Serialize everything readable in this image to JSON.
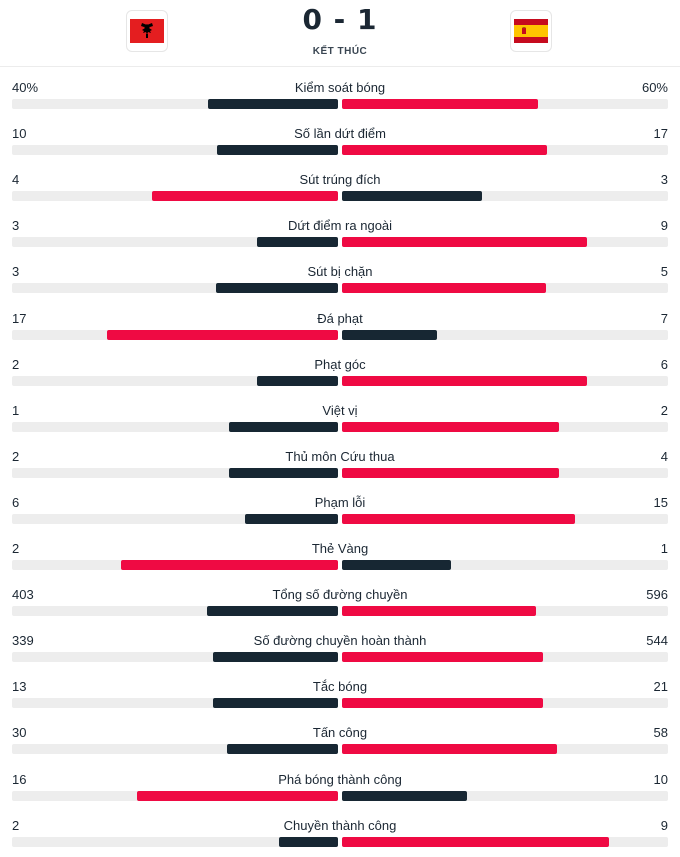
{
  "match": {
    "score": "0 - 1",
    "status": "KẾT THÚC",
    "home_team": {
      "flag_icon": "albania-flag-icon"
    },
    "away_team": {
      "flag_icon": "spain-flag-icon"
    }
  },
  "colors": {
    "home": "#172733",
    "away": "#ef0a43",
    "track": "#ededed"
  },
  "stats": [
    {
      "label": "Kiểm soát bóng",
      "home": "40%",
      "away": "60%",
      "home_val": 40,
      "away_val": 60
    },
    {
      "label": "Số lần dứt điểm",
      "home": "10",
      "away": "17",
      "home_val": 10,
      "away_val": 17
    },
    {
      "label": "Sút trúng đích",
      "home": "4",
      "away": "3",
      "home_val": 4,
      "away_val": 3
    },
    {
      "label": "Dứt điểm ra ngoài",
      "home": "3",
      "away": "9",
      "home_val": 3,
      "away_val": 9
    },
    {
      "label": "Sút bị chặn",
      "home": "3",
      "away": "5",
      "home_val": 3,
      "away_val": 5
    },
    {
      "label": "Đá phạt",
      "home": "17",
      "away": "7",
      "home_val": 17,
      "away_val": 7
    },
    {
      "label": "Phạt góc",
      "home": "2",
      "away": "6",
      "home_val": 2,
      "away_val": 6
    },
    {
      "label": "Việt vị",
      "home": "1",
      "away": "2",
      "home_val": 1,
      "away_val": 2
    },
    {
      "label": "Thủ môn Cứu thua",
      "home": "2",
      "away": "4",
      "home_val": 2,
      "away_val": 4
    },
    {
      "label": "Phạm lỗi",
      "home": "6",
      "away": "15",
      "home_val": 6,
      "away_val": 15
    },
    {
      "label": "Thẻ Vàng",
      "home": "2",
      "away": "1",
      "home_val": 2,
      "away_val": 1
    },
    {
      "label": "Tổng số đường chuyền",
      "home": "403",
      "away": "596",
      "home_val": 403,
      "away_val": 596
    },
    {
      "label": "Số đường chuyền hoàn thành",
      "home": "339",
      "away": "544",
      "home_val": 339,
      "away_val": 544
    },
    {
      "label": "Tắc bóng",
      "home": "13",
      "away": "21",
      "home_val": 13,
      "away_val": 21
    },
    {
      "label": "Tấn công",
      "home": "30",
      "away": "58",
      "home_val": 30,
      "away_val": 58
    },
    {
      "label": "Phá bóng thành công",
      "home": "16",
      "away": "10",
      "home_val": 16,
      "away_val": 10
    },
    {
      "label": "Chuyền thành công",
      "home": "2",
      "away": "9",
      "home_val": 2,
      "away_val": 9
    }
  ]
}
